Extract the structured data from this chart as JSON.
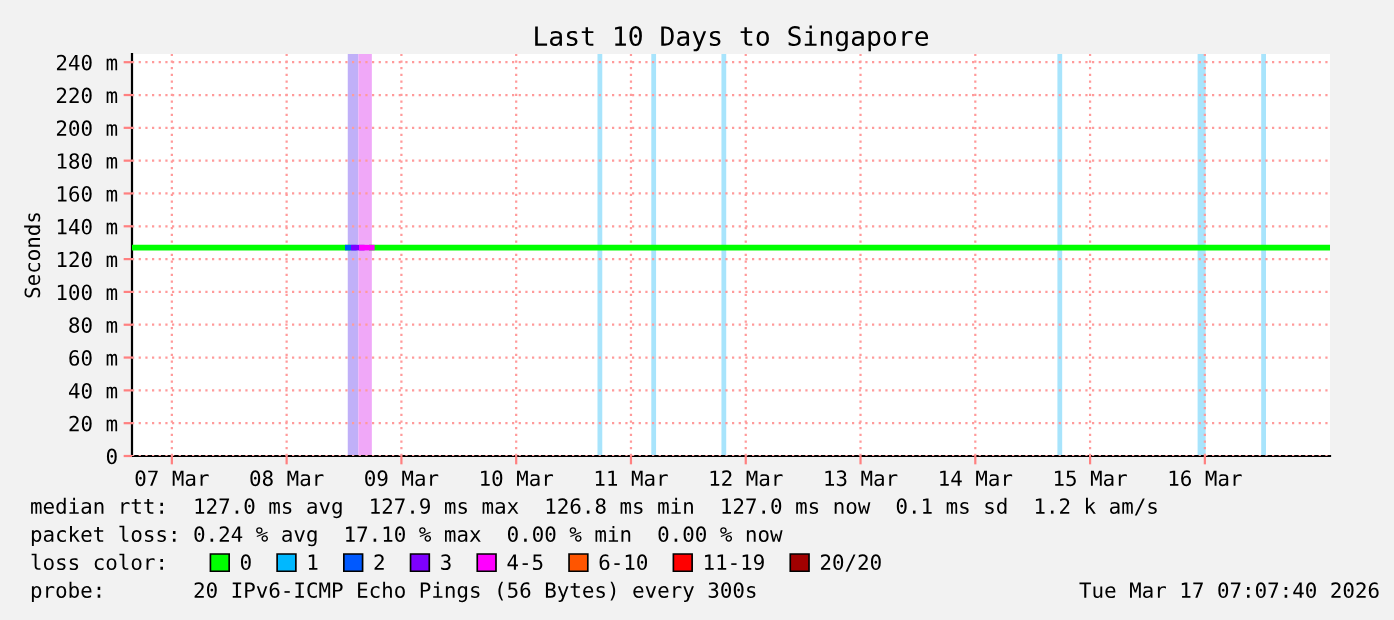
{
  "chart_data": {
    "type": "line",
    "title": "Last 10 Days to Singapore",
    "ylabel": "Seconds",
    "x": [
      "2026-03-06T15:40",
      "2026-03-08T12:47",
      "2026-03-08T14:03",
      "2026-03-08T15:43",
      "2026-03-08T17:49",
      "2026-03-17T02:10"
    ],
    "series": [
      {
        "name": "0",
        "color": "#00ff00",
        "values": [
          127,
          127,
          null,
          null,
          127,
          127
        ]
      },
      {
        "name": "1",
        "color": "#00b8ff",
        "values": [
          null,
          null,
          null,
          null,
          null,
          null
        ]
      },
      {
        "name": "2",
        "color": "#0059ff",
        "values": [
          null,
          127,
          127,
          null,
          null,
          null
        ]
      },
      {
        "name": "3",
        "color": "#7e00ff",
        "values": [
          null,
          null,
          127,
          127,
          null,
          null
        ]
      },
      {
        "name": "4-5",
        "color": "#ff00ff",
        "values": [
          null,
          null,
          null,
          127,
          127,
          null
        ]
      },
      {
        "name": "6-10",
        "color": "#ff5500",
        "values": [
          null,
          null,
          null,
          null,
          null,
          null
        ]
      },
      {
        "name": "11-19",
        "color": "#ff0000",
        "values": [
          null,
          null,
          null,
          null,
          null,
          null
        ]
      },
      {
        "name": "20/20",
        "color": "#a10000",
        "values": [
          null,
          null,
          null,
          null,
          null,
          null
        ]
      }
    ],
    "bands": [
      {
        "axis": "x",
        "from": "2026-03-08T12:47",
        "to": "2026-03-08T15:00",
        "color": "#c0b0f8"
      },
      {
        "axis": "x",
        "from": "2026-03-08T15:00",
        "to": "2026-03-08T17:49",
        "color": "#f0a8f8"
      },
      {
        "axis": "x",
        "from": "2026-03-10T17:00",
        "to": "2026-03-10T18:00",
        "color": "#a8e4fc"
      },
      {
        "axis": "x",
        "from": "2026-03-11T04:15",
        "to": "2026-03-11T05:15",
        "color": "#a8e4fc"
      },
      {
        "axis": "x",
        "from": "2026-03-11T18:55",
        "to": "2026-03-11T19:55",
        "color": "#a8e4fc"
      },
      {
        "axis": "x",
        "from": "2026-03-14T17:10",
        "to": "2026-03-14T18:10",
        "color": "#a8e4fc"
      },
      {
        "axis": "x",
        "from": "2026-03-15T22:29",
        "to": "2026-03-16T00:10",
        "color": "#a8e4fc"
      },
      {
        "axis": "x",
        "from": "2026-03-16T11:47",
        "to": "2026-03-16T12:47",
        "color": "#a8e4fc"
      }
    ],
    "xlim": [
      "2026-03-06T15:40",
      "2026-03-17T02:10"
    ],
    "xticks": [
      {
        "value": "2026-03-07",
        "label": "07 Mar"
      },
      {
        "value": "2026-03-08",
        "label": "08 Mar"
      },
      {
        "value": "2026-03-09",
        "label": "09 Mar"
      },
      {
        "value": "2026-03-10",
        "label": "10 Mar"
      },
      {
        "value": "2026-03-11",
        "label": "11 Mar"
      },
      {
        "value": "2026-03-12",
        "label": "12 Mar"
      },
      {
        "value": "2026-03-13",
        "label": "13 Mar"
      },
      {
        "value": "2026-03-14",
        "label": "14 Mar"
      },
      {
        "value": "2026-03-15",
        "label": "15 Mar"
      },
      {
        "value": "2026-03-16",
        "label": "16 Mar"
      }
    ],
    "ylim": [
      0,
      245
    ],
    "yticks": [
      0,
      {
        "value": 20,
        "label": "20 m"
      },
      {
        "value": 40,
        "label": "40 m"
      },
      {
        "value": 60,
        "label": "60 m"
      },
      {
        "value": 80,
        "label": "80 m"
      },
      {
        "value": 100,
        "label": "100 m"
      },
      {
        "value": 120,
        "label": "120 m"
      },
      {
        "value": 140,
        "label": "140 m"
      },
      {
        "value": 160,
        "label": "160 m"
      },
      {
        "value": 180,
        "label": "180 m"
      },
      {
        "value": 200,
        "label": "200 m"
      },
      {
        "value": 220,
        "label": "220 m"
      },
      {
        "value": 240,
        "label": "240 m"
      }
    ],
    "grid": true,
    "legend": "bottom",
    "annotations": [
      "median rtt:  127.0 ms avg  127.9 ms max  126.8 ms min  127.0 ms now  0.1 ms sd  1.2 k am/s",
      "packet loss: 0.24 % avg  17.10 % max  0.00 % min  0.00 % now",
      "loss color:",
      "probe:       20 IPv6-ICMP Echo Pings (56 Bytes) every 300s",
      "Tue Mar 17 07:07:40 2026"
    ]
  }
}
